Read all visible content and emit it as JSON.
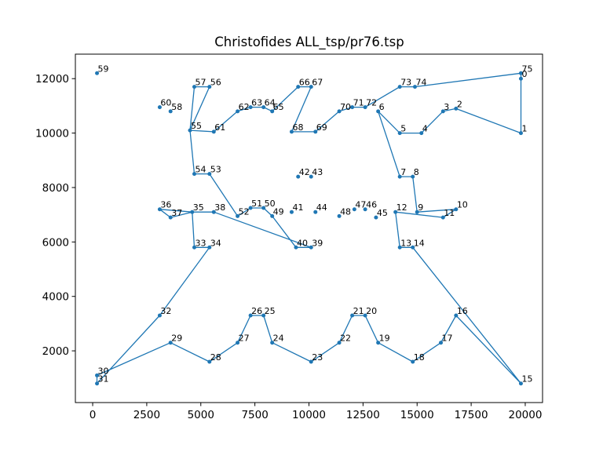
{
  "chart_data": {
    "type": "line",
    "title": "Christofides ALL_tsp/pr76.tsp",
    "xlabel": "",
    "ylabel": "",
    "xlim": [
      -800,
      20800
    ],
    "ylim": [
      100,
      12900
    ],
    "xticks": [
      0,
      2500,
      5000,
      7500,
      10000,
      12500,
      15000,
      17500,
      20000
    ],
    "yticks": [
      2000,
      4000,
      6000,
      8000,
      10000,
      12000
    ],
    "grid": false,
    "legend": "none",
    "colors": {
      "series": "#1f77b4"
    },
    "points": [
      {
        "id": 0,
        "label": "0",
        "x": 19800,
        "y": 12000
      },
      {
        "id": 1,
        "label": "1",
        "x": 19800,
        "y": 10000
      },
      {
        "id": 2,
        "label": "2",
        "x": 16800,
        "y": 10900
      },
      {
        "id": 3,
        "label": "3",
        "x": 16200,
        "y": 10800
      },
      {
        "id": 4,
        "label": "4",
        "x": 15200,
        "y": 10000
      },
      {
        "id": 5,
        "label": "5",
        "x": 14200,
        "y": 10000
      },
      {
        "id": 6,
        "label": "6",
        "x": 13200,
        "y": 10800
      },
      {
        "id": 7,
        "label": "7",
        "x": 14200,
        "y": 8400
      },
      {
        "id": 8,
        "label": "8",
        "x": 14800,
        "y": 8400
      },
      {
        "id": 9,
        "label": "9",
        "x": 15000,
        "y": 7100
      },
      {
        "id": 10,
        "label": "10",
        "x": 16800,
        "y": 7200
      },
      {
        "id": 11,
        "label": "11",
        "x": 16200,
        "y": 6900
      },
      {
        "id": 12,
        "label": "12",
        "x": 14000,
        "y": 7100
      },
      {
        "id": 13,
        "label": "13",
        "x": 14200,
        "y": 5800
      },
      {
        "id": 14,
        "label": "14",
        "x": 14800,
        "y": 5800
      },
      {
        "id": 15,
        "label": "15",
        "x": 19800,
        "y": 800
      },
      {
        "id": 16,
        "label": "16",
        "x": 16800,
        "y": 3300
      },
      {
        "id": 17,
        "label": "17",
        "x": 16100,
        "y": 2300
      },
      {
        "id": 18,
        "label": "18",
        "x": 14800,
        "y": 1600
      },
      {
        "id": 19,
        "label": "19",
        "x": 13200,
        "y": 2300
      },
      {
        "id": 20,
        "label": "20",
        "x": 12600,
        "y": 3300
      },
      {
        "id": 21,
        "label": "21",
        "x": 12000,
        "y": 3300
      },
      {
        "id": 22,
        "label": "22",
        "x": 11400,
        "y": 2300
      },
      {
        "id": 23,
        "label": "23",
        "x": 10100,
        "y": 1600
      },
      {
        "id": 24,
        "label": "24",
        "x": 8300,
        "y": 2300
      },
      {
        "id": 25,
        "label": "25",
        "x": 7900,
        "y": 3300
      },
      {
        "id": 26,
        "label": "26",
        "x": 7300,
        "y": 3300
      },
      {
        "id": 27,
        "label": "27",
        "x": 6700,
        "y": 2300
      },
      {
        "id": 28,
        "label": "28",
        "x": 5400,
        "y": 1600
      },
      {
        "id": 29,
        "label": "29",
        "x": 3600,
        "y": 2300
      },
      {
        "id": 30,
        "label": "30",
        "x": 200,
        "y": 1100
      },
      {
        "id": 31,
        "label": "31",
        "x": 200,
        "y": 800
      },
      {
        "id": 32,
        "label": "32",
        "x": 3100,
        "y": 3300
      },
      {
        "id": 33,
        "label": "33",
        "x": 4700,
        "y": 5800
      },
      {
        "id": 34,
        "label": "34",
        "x": 5400,
        "y": 5800
      },
      {
        "id": 35,
        "label": "35",
        "x": 4600,
        "y": 7100
      },
      {
        "id": 36,
        "label": "36",
        "x": 3100,
        "y": 7200
      },
      {
        "id": 37,
        "label": "37",
        "x": 3600,
        "y": 6900
      },
      {
        "id": 38,
        "label": "38",
        "x": 5600,
        "y": 7100
      },
      {
        "id": 39,
        "label": "39",
        "x": 10100,
        "y": 5800
      },
      {
        "id": 40,
        "label": "40",
        "x": 9400,
        "y": 5800
      },
      {
        "id": 41,
        "label": "41",
        "x": 9200,
        "y": 7100
      },
      {
        "id": 42,
        "label": "42",
        "x": 9500,
        "y": 8400
      },
      {
        "id": 43,
        "label": "43",
        "x": 10100,
        "y": 8400
      },
      {
        "id": 44,
        "label": "44",
        "x": 10300,
        "y": 7100
      },
      {
        "id": 45,
        "label": "45",
        "x": 13100,
        "y": 6900
      },
      {
        "id": 46,
        "label": "46",
        "x": 12600,
        "y": 7200
      },
      {
        "id": 47,
        "label": "47",
        "x": 12100,
        "y": 7200
      },
      {
        "id": 48,
        "label": "48",
        "x": 11400,
        "y": 6950
      },
      {
        "id": 49,
        "label": "49",
        "x": 8300,
        "y": 6950
      },
      {
        "id": 50,
        "label": "50",
        "x": 7900,
        "y": 7250
      },
      {
        "id": 51,
        "label": "51",
        "x": 7300,
        "y": 7250
      },
      {
        "id": 52,
        "label": "52",
        "x": 6700,
        "y": 6950
      },
      {
        "id": 53,
        "label": "53",
        "x": 5400,
        "y": 8500
      },
      {
        "id": 54,
        "label": "54",
        "x": 4700,
        "y": 8500
      },
      {
        "id": 55,
        "label": "55",
        "x": 4500,
        "y": 10100
      },
      {
        "id": 56,
        "label": "56",
        "x": 5400,
        "y": 11700
      },
      {
        "id": 57,
        "label": "57",
        "x": 4700,
        "y": 11700
      },
      {
        "id": 58,
        "label": "58",
        "x": 3600,
        "y": 10800
      },
      {
        "id": 59,
        "label": "59",
        "x": 200,
        "y": 12200
      },
      {
        "id": 60,
        "label": "60",
        "x": 3100,
        "y": 10950
      },
      {
        "id": 61,
        "label": "61",
        "x": 5600,
        "y": 10050
      },
      {
        "id": 62,
        "label": "62",
        "x": 6700,
        "y": 10800
      },
      {
        "id": 63,
        "label": "63",
        "x": 7300,
        "y": 10950
      },
      {
        "id": 64,
        "label": "64",
        "x": 7900,
        "y": 10950
      },
      {
        "id": 65,
        "label": "65",
        "x": 8300,
        "y": 10800
      },
      {
        "id": 66,
        "label": "66",
        "x": 9500,
        "y": 11700
      },
      {
        "id": 67,
        "label": "67",
        "x": 10100,
        "y": 11700
      },
      {
        "id": 68,
        "label": "68",
        "x": 9200,
        "y": 10050
      },
      {
        "id": 69,
        "label": "69",
        "x": 10300,
        "y": 10050
      },
      {
        "id": 70,
        "label": "70",
        "x": 11400,
        "y": 10800
      },
      {
        "id": 71,
        "label": "71",
        "x": 12000,
        "y": 10950
      },
      {
        "id": 72,
        "label": "72",
        "x": 12600,
        "y": 10950
      },
      {
        "id": 73,
        "label": "73",
        "x": 14200,
        "y": 11700
      },
      {
        "id": 74,
        "label": "74",
        "x": 14900,
        "y": 11700
      },
      {
        "id": 75,
        "label": "75",
        "x": 19800,
        "y": 12200
      }
    ],
    "tour": [
      0,
      75,
      74,
      73,
      72,
      71,
      70,
      69,
      68,
      67,
      66,
      65,
      64,
      63,
      62,
      61,
      55,
      57,
      56,
      55,
      54,
      53,
      52,
      51,
      50,
      49,
      40,
      39,
      38,
      35,
      37,
      36,
      35,
      33,
      34,
      32,
      31,
      30,
      29,
      28,
      27,
      26,
      25,
      24,
      23,
      22,
      21,
      20,
      19,
      18,
      17,
      16,
      15,
      14,
      13,
      12,
      11,
      10,
      9,
      8,
      7,
      6,
      5,
      4,
      3,
      2,
      1,
      0
    ]
  }
}
